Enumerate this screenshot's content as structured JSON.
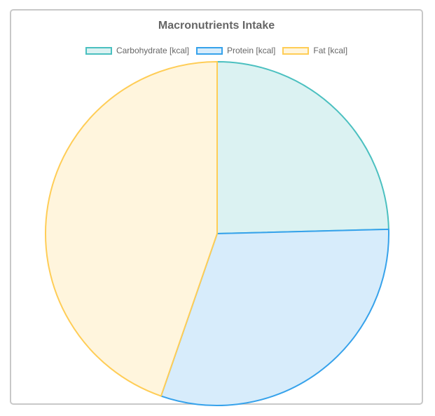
{
  "chart_data": {
    "type": "pie",
    "title": "Macronutrients Intake",
    "legend_position": "top",
    "slices": [
      {
        "label": "Carbohydrate [kcal]",
        "value": 24.6,
        "border": "#4bc0c0",
        "fill": "#dbf2f2"
      },
      {
        "label": "Protein [kcal]",
        "value": 30.7,
        "border": "#36a2eb",
        "fill": "#d7ecfb"
      },
      {
        "label": "Fat [kcal]",
        "value": 44.7,
        "border": "#ffcd56",
        "fill": "#fff5dd"
      }
    ]
  }
}
